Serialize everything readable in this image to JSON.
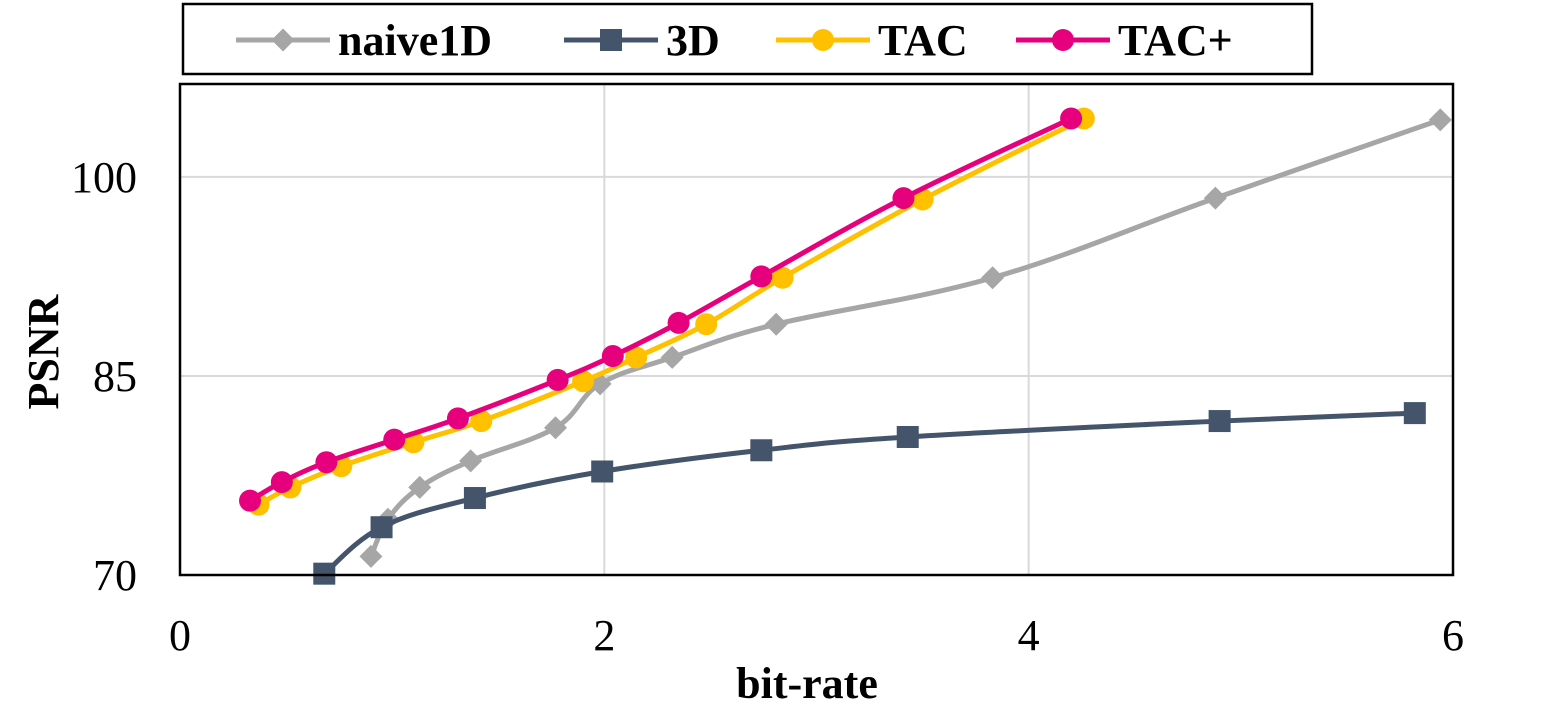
{
  "chart_data": {
    "type": "line",
    "title": "",
    "xlabel": "bit-rate",
    "ylabel": "PSNR",
    "xlim": [
      0,
      6
    ],
    "ylim": [
      70,
      107
    ],
    "xticks": [
      0,
      2,
      4,
      6
    ],
    "yticks": [
      70,
      85,
      100
    ],
    "grid": true,
    "legend_position": "top",
    "series": [
      {
        "name": "naive1D",
        "color": "#a6a6a6",
        "marker": "diamond",
        "points": [
          [
            0.9,
            71.4
          ],
          [
            0.98,
            74.2
          ],
          [
            1.13,
            76.6
          ],
          [
            1.37,
            78.6
          ],
          [
            1.77,
            81.1
          ],
          [
            1.98,
            84.4
          ],
          [
            2.32,
            86.4
          ],
          [
            2.81,
            88.9
          ],
          [
            3.83,
            92.4
          ],
          [
            4.88,
            98.4
          ],
          [
            5.94,
            104.3
          ]
        ]
      },
      {
        "name": "3D",
        "color": "#44546a",
        "marker": "square",
        "points": [
          [
            0.68,
            70.1
          ],
          [
            0.95,
            73.6
          ],
          [
            1.39,
            75.8
          ],
          [
            1.99,
            77.8
          ],
          [
            2.74,
            79.4
          ],
          [
            3.43,
            80.4
          ],
          [
            4.9,
            81.6
          ],
          [
            5.82,
            82.2
          ]
        ]
      },
      {
        "name": "TAC",
        "color": "#ffc000",
        "marker": "circle",
        "points": [
          [
            0.37,
            75.3
          ],
          [
            0.52,
            76.6
          ],
          [
            0.76,
            78.2
          ],
          [
            1.1,
            80.0
          ],
          [
            1.42,
            81.6
          ],
          [
            1.9,
            84.6
          ],
          [
            2.15,
            86.4
          ],
          [
            2.48,
            88.9
          ],
          [
            2.84,
            92.4
          ],
          [
            3.5,
            98.3
          ],
          [
            4.26,
            104.4
          ]
        ]
      },
      {
        "name": "TAC+",
        "color": "#e6007e",
        "marker": "circle",
        "points": [
          [
            0.33,
            75.6
          ],
          [
            0.48,
            77.0
          ],
          [
            0.69,
            78.5
          ],
          [
            1.01,
            80.2
          ],
          [
            1.31,
            81.8
          ],
          [
            1.78,
            84.7
          ],
          [
            2.04,
            86.5
          ],
          [
            2.35,
            89.0
          ],
          [
            2.74,
            92.5
          ],
          [
            3.41,
            98.4
          ],
          [
            4.2,
            104.4
          ]
        ]
      }
    ]
  }
}
